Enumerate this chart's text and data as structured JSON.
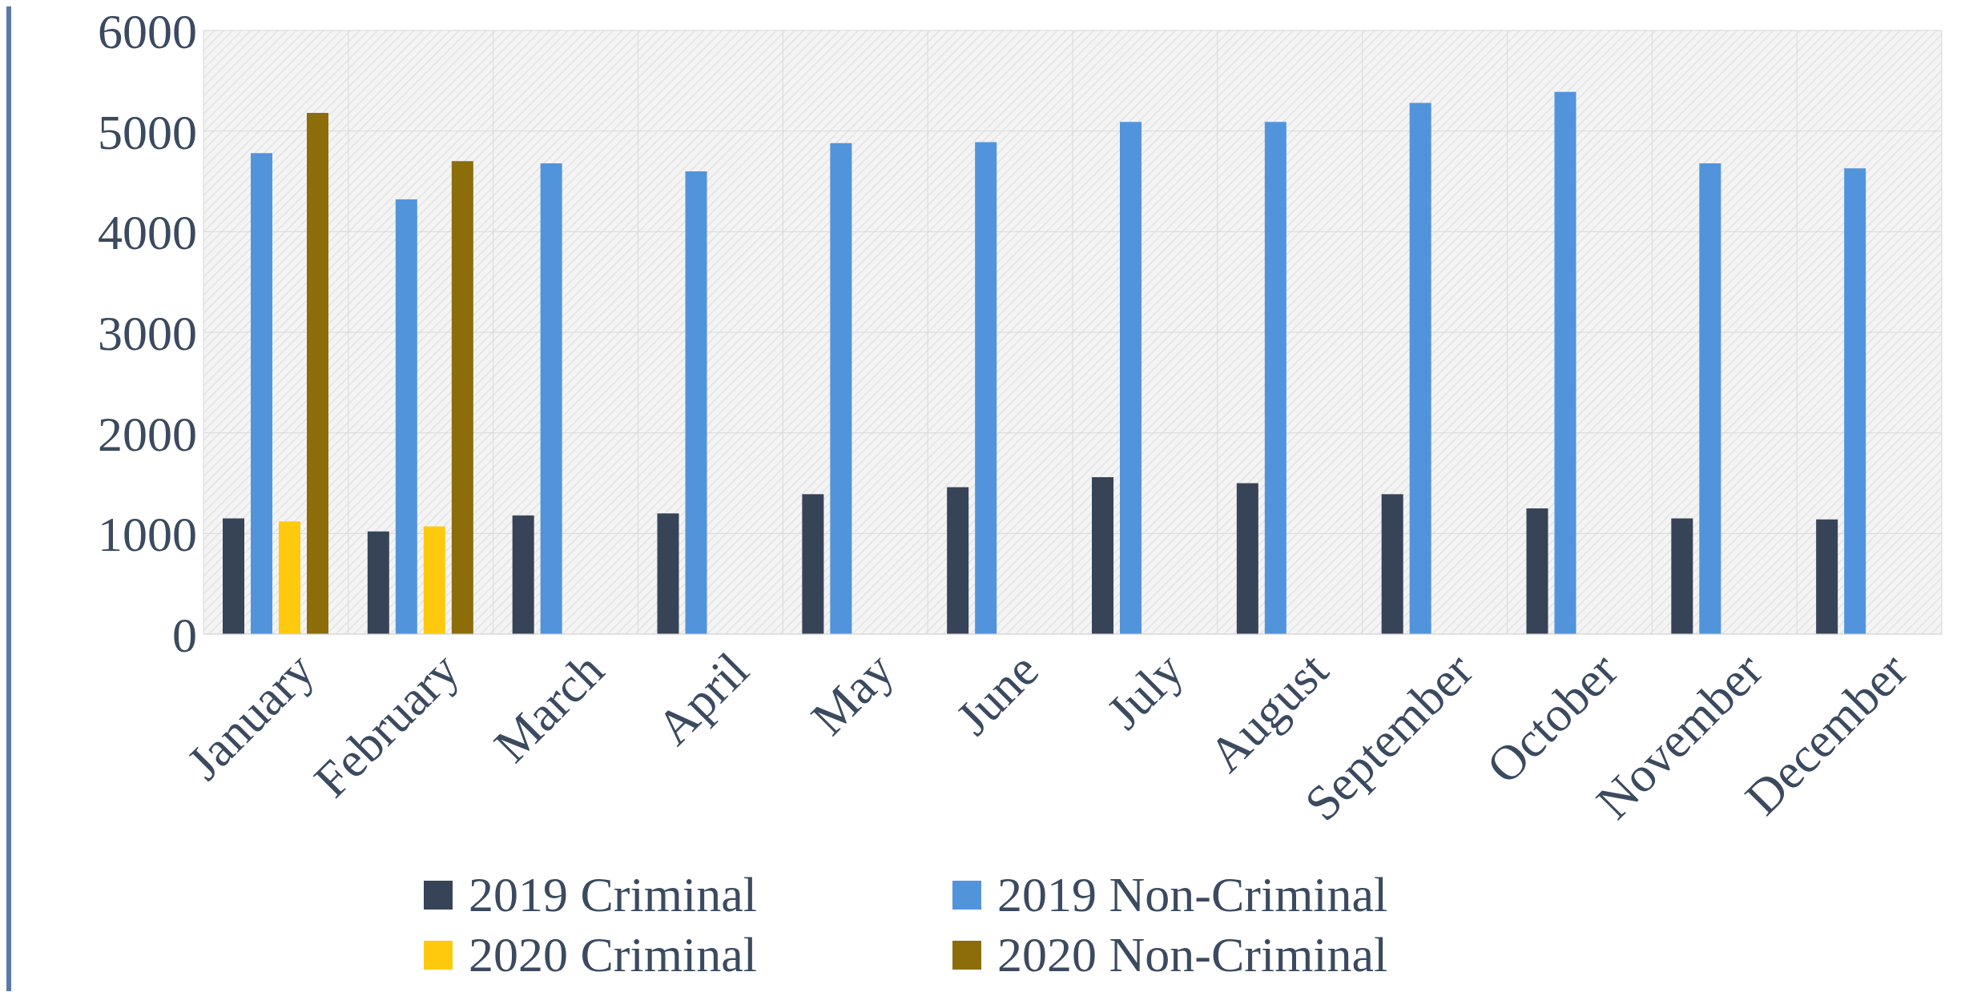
{
  "chart_data": {
    "type": "bar",
    "categories": [
      "January",
      "February",
      "March",
      "April",
      "May",
      "June",
      "July",
      "August",
      "September",
      "October",
      "November",
      "December"
    ],
    "series": [
      {
        "name": "2019 Criminal",
        "color": "#374458",
        "values": [
          1150,
          1020,
          1180,
          1200,
          1390,
          1460,
          1560,
          1500,
          1390,
          1250,
          1150,
          1140
        ]
      },
      {
        "name": "2019 Non-Criminal",
        "color": "#5294dc",
        "values": [
          4780,
          4320,
          4680,
          4600,
          4880,
          4890,
          5090,
          5090,
          5280,
          5390,
          4680,
          4630
        ]
      },
      {
        "name": "2020 Criminal",
        "color": "#ffc90e",
        "values": [
          1120,
          1070,
          null,
          null,
          null,
          null,
          null,
          null,
          null,
          null,
          null,
          null
        ]
      },
      {
        "name": "2020 Non-Criminal",
        "color": "#8c6d0a",
        "values": [
          5180,
          4700,
          null,
          null,
          null,
          null,
          null,
          null,
          null,
          null,
          null,
          null
        ]
      }
    ],
    "ylim": [
      0,
      6000
    ],
    "yticks": [
      0,
      1000,
      2000,
      3000,
      4000,
      5000,
      6000
    ],
    "grid": true,
    "legend": "bottom"
  }
}
